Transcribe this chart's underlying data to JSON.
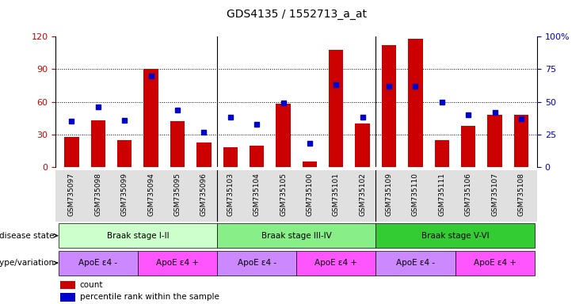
{
  "title": "GDS4135 / 1552713_a_at",
  "samples": [
    "GSM735097",
    "GSM735098",
    "GSM735099",
    "GSM735094",
    "GSM735095",
    "GSM735096",
    "GSM735103",
    "GSM735104",
    "GSM735105",
    "GSM735100",
    "GSM735101",
    "GSM735102",
    "GSM735109",
    "GSM735110",
    "GSM735111",
    "GSM735106",
    "GSM735107",
    "GSM735108"
  ],
  "counts": [
    28,
    43,
    25,
    90,
    42,
    23,
    18,
    20,
    58,
    5,
    108,
    40,
    112,
    118,
    25,
    38,
    48,
    48
  ],
  "percentile_ranks": [
    35,
    46,
    36,
    70,
    44,
    27,
    38,
    33,
    49,
    18,
    63,
    38,
    62,
    62,
    50,
    40,
    42,
    37
  ],
  "bar_color": "#cc0000",
  "marker_color": "#0000cc",
  "ylim_left": [
    0,
    120
  ],
  "ylim_right": [
    0,
    100
  ],
  "yticks_left": [
    0,
    30,
    60,
    90,
    120
  ],
  "yticks_right": [
    0,
    25,
    50,
    75,
    100
  ],
  "disease_stages": [
    {
      "label": "Braak stage I-II",
      "start": 0,
      "end": 6,
      "color": "#ccffcc"
    },
    {
      "label": "Braak stage III-IV",
      "start": 6,
      "end": 12,
      "color": "#88ee88"
    },
    {
      "label": "Braak stage V-VI",
      "start": 12,
      "end": 18,
      "color": "#33cc33"
    }
  ],
  "genotype_groups": [
    {
      "label": "ApoE ε4 -",
      "start": 0,
      "end": 3,
      "color": "#cc88ff"
    },
    {
      "label": "ApoE ε4 +",
      "start": 3,
      "end": 6,
      "color": "#ff55ff"
    },
    {
      "label": "ApoE ε4 -",
      "start": 6,
      "end": 9,
      "color": "#cc88ff"
    },
    {
      "label": "ApoE ε4 +",
      "start": 9,
      "end": 12,
      "color": "#ff55ff"
    },
    {
      "label": "ApoE ε4 -",
      "start": 12,
      "end": 15,
      "color": "#cc88ff"
    },
    {
      "label": "ApoE ε4 +",
      "start": 15,
      "end": 18,
      "color": "#ff55ff"
    }
  ],
  "disease_state_label": "disease state",
  "genotype_label": "genotype/variation",
  "legend_count_label": "count",
  "legend_percentile_label": "percentile rank within the sample",
  "title_fontsize": 10,
  "tick_fontsize": 6.5,
  "row_fontsize": 7.5,
  "legend_fontsize": 7.5
}
